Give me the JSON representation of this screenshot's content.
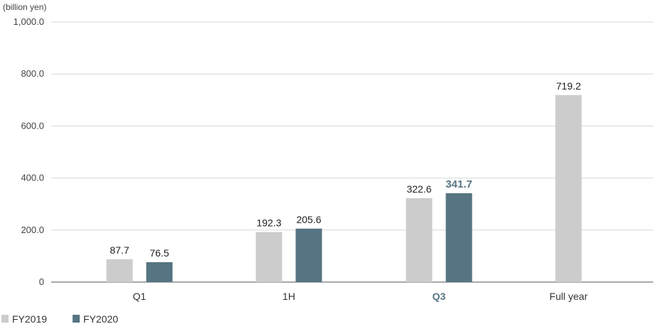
{
  "chart_data": {
    "type": "bar",
    "unit_label": "(billion yen)",
    "categories": [
      "Q1",
      "1H",
      "Q3",
      "Full year"
    ],
    "highlight_category": "Q3",
    "series": [
      {
        "name": "FY2019",
        "color": "#cccccc",
        "values": [
          87.7,
          192.3,
          322.6,
          719.2
        ]
      },
      {
        "name": "FY2020",
        "color": "#567482",
        "values": [
          76.5,
          205.6,
          341.7,
          null
        ]
      }
    ],
    "data_labels": [
      [
        "87.7",
        "192.3",
        "322.6",
        "719.2"
      ],
      [
        "76.5",
        "205.6",
        "341.7",
        ""
      ]
    ],
    "highlight_label": {
      "series": 1,
      "category": 2
    },
    "ylim": [
      0,
      1000
    ],
    "yticks": [
      0,
      200,
      400,
      600,
      800,
      1000
    ],
    "ytick_labels": [
      "0",
      "200.0",
      "400.0",
      "600.0",
      "800.0",
      "1,000.0"
    ],
    "grid": true,
    "legend_position": "bottom-left"
  }
}
